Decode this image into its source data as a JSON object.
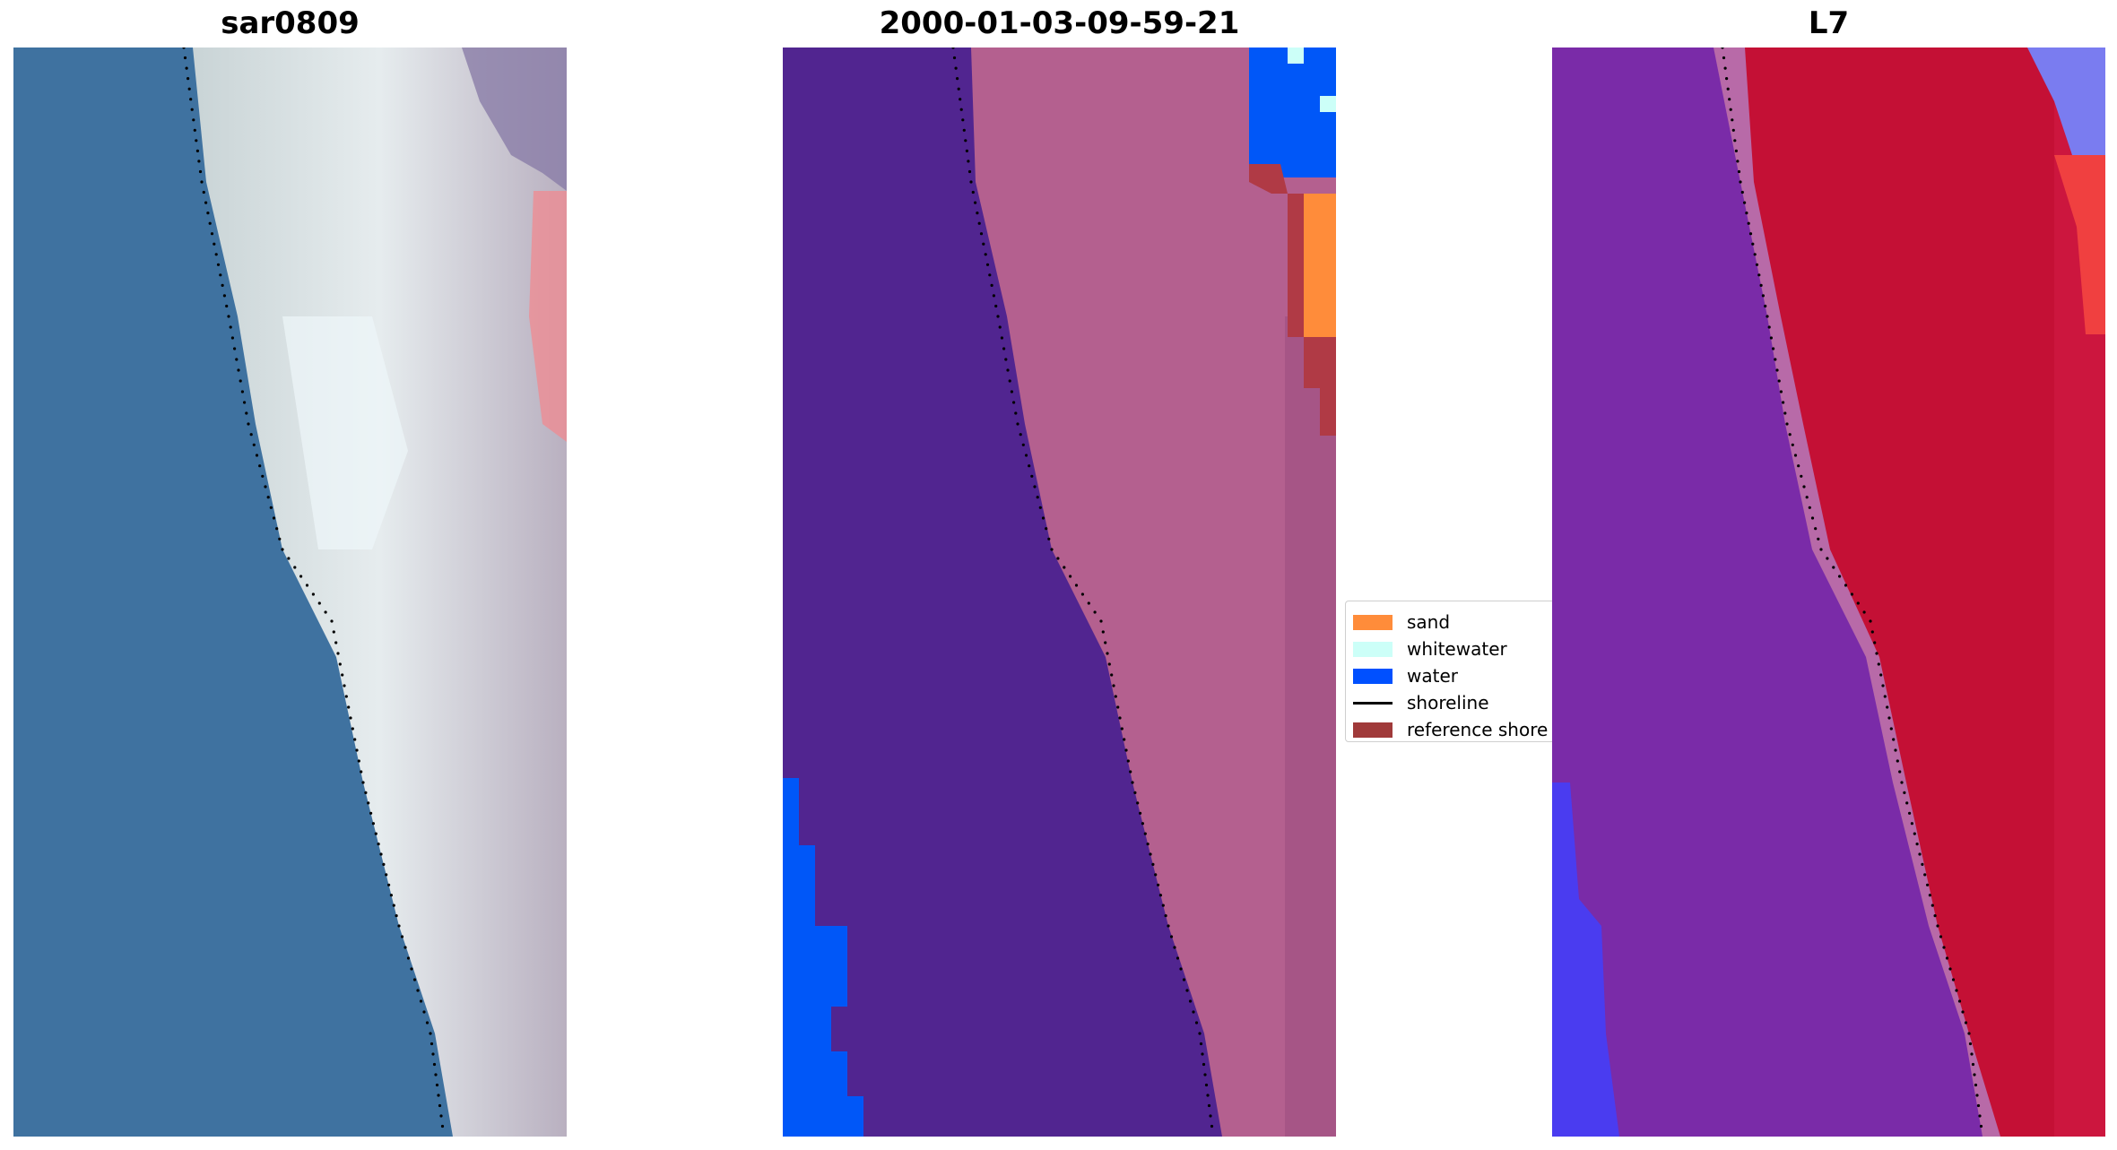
{
  "panels": [
    {
      "title": "sar0809"
    },
    {
      "title": "2000-01-03-09-59-21"
    },
    {
      "title": "L7"
    }
  ],
  "legend": {
    "items": [
      {
        "label": "sand",
        "color": "#ff8c3a",
        "kind": "patch"
      },
      {
        "label": "whitewater",
        "color": "#ccfff8",
        "kind": "patch"
      },
      {
        "label": "water",
        "color": "#0050ff",
        "kind": "patch"
      },
      {
        "label": "shoreline",
        "color": "#000000",
        "kind": "line"
      },
      {
        "label": "reference shore",
        "color": "#a03a3a",
        "kind": "patch"
      }
    ]
  },
  "colors": {
    "sea_rgb": "#3f72a0",
    "beach_rgb": "#d4dde0",
    "classified_sea": "#512590",
    "classified_land": "#b4608f",
    "falsecolor_sea": "#7a2ba8",
    "falsecolor_land": "#c41035",
    "shoreline": "#000000"
  }
}
